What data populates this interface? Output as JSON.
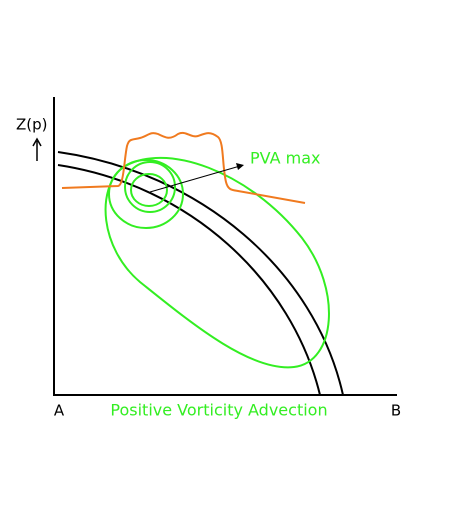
{
  "axis_label": "Z(p)",
  "annotation": "PVA max",
  "left_label": "A",
  "right_label": "B",
  "caption": "Positive Vorticity Advection"
}
